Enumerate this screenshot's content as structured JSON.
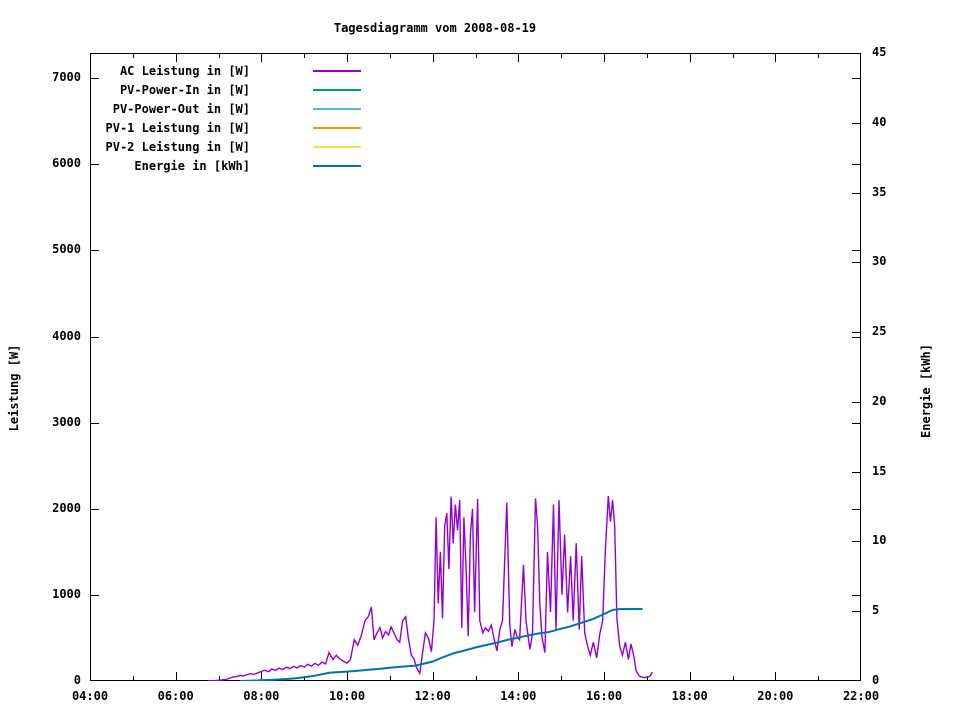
{
  "title": "Tagesdiagramm vom 2008-08-19",
  "axis_titles": {
    "left": "Leistung [W]",
    "right": "Energie [kWh]"
  },
  "legend": [
    {
      "label": "AC Leistung in [W]",
      "color": "#9400d3"
    },
    {
      "label": "PV-Power-In in [W]",
      "color": "#009e73"
    },
    {
      "label": "PV-Power-Out in [W]",
      "color": "#56b4e9"
    },
    {
      "label": "PV-1 Leistung in [W]",
      "color": "#e69f00"
    },
    {
      "label": "PV-2 Leistung in [W]",
      "color": "#f0e442"
    },
    {
      "label": "Energie in [kWh]",
      "color": "#0072b2"
    }
  ],
  "chart_data": {
    "type": "line",
    "title": "Tagesdiagramm vom 2008-08-19",
    "ylabel_left": "Leistung [W]",
    "ylabel_right": "Energie [kWh]",
    "grid": false,
    "legend_position": "top-left-inside",
    "x_axis": {
      "unit": "time of day",
      "min_hour": 4,
      "max_hour": 22,
      "major_ticks": [
        {
          "t": 4,
          "label": "04:00"
        },
        {
          "t": 6,
          "label": "06:00"
        },
        {
          "t": 8,
          "label": "08:00"
        },
        {
          "t": 10,
          "label": "10:00"
        },
        {
          "t": 12,
          "label": "12:00"
        },
        {
          "t": 14,
          "label": "14:00"
        },
        {
          "t": 16,
          "label": "16:00"
        },
        {
          "t": 18,
          "label": "18:00"
        },
        {
          "t": 20,
          "label": "20:00"
        },
        {
          "t": 22,
          "label": "22:00"
        }
      ],
      "minor_ticks": [
        5,
        7,
        9,
        11,
        13,
        15,
        17,
        19,
        21
      ]
    },
    "y_left_axis": {
      "label": "Leistung [W]",
      "min": 0,
      "plot_top_value": 7293,
      "ticks": [
        0,
        1000,
        2000,
        3000,
        4000,
        5000,
        6000,
        7000
      ]
    },
    "y_right_axis": {
      "label": "Energie [kWh]",
      "min": 0,
      "max": 45,
      "ticks": [
        0,
        5,
        10,
        15,
        20,
        25,
        30,
        35,
        40,
        45
      ]
    },
    "series": [
      {
        "name": "AC Leistung in [W]",
        "color": "#9400d3",
        "axis": "left",
        "visible": true,
        "points": [
          [
            6.75,
            0
          ],
          [
            6.83,
            3
          ],
          [
            6.92,
            5
          ],
          [
            7.0,
            8
          ],
          [
            7.08,
            12
          ],
          [
            7.17,
            18
          ],
          [
            7.25,
            30
          ],
          [
            7.33,
            45
          ],
          [
            7.42,
            50
          ],
          [
            7.5,
            65
          ],
          [
            7.58,
            58
          ],
          [
            7.67,
            75
          ],
          [
            7.75,
            85
          ],
          [
            7.83,
            78
          ],
          [
            7.92,
            95
          ],
          [
            8.0,
            112
          ],
          [
            8.08,
            125
          ],
          [
            8.17,
            108
          ],
          [
            8.25,
            140
          ],
          [
            8.33,
            122
          ],
          [
            8.42,
            150
          ],
          [
            8.5,
            132
          ],
          [
            8.58,
            160
          ],
          [
            8.67,
            143
          ],
          [
            8.75,
            170
          ],
          [
            8.83,
            152
          ],
          [
            8.92,
            180
          ],
          [
            9.0,
            162
          ],
          [
            9.08,
            195
          ],
          [
            9.17,
            172
          ],
          [
            9.25,
            205
          ],
          [
            9.33,
            182
          ],
          [
            9.42,
            220
          ],
          [
            9.5,
            198
          ],
          [
            9.58,
            330
          ],
          [
            9.67,
            248
          ],
          [
            9.75,
            300
          ],
          [
            9.83,
            258
          ],
          [
            9.92,
            228
          ],
          [
            10.0,
            208
          ],
          [
            10.08,
            250
          ],
          [
            10.17,
            480
          ],
          [
            10.25,
            415
          ],
          [
            10.33,
            520
          ],
          [
            10.42,
            700
          ],
          [
            10.5,
            750
          ],
          [
            10.57,
            860
          ],
          [
            10.63,
            480
          ],
          [
            10.7,
            560
          ],
          [
            10.77,
            620
          ],
          [
            10.83,
            500
          ],
          [
            10.9,
            575
          ],
          [
            10.97,
            535
          ],
          [
            11.03,
            628
          ],
          [
            11.1,
            555
          ],
          [
            11.17,
            478
          ],
          [
            11.23,
            450
          ],
          [
            11.3,
            700
          ],
          [
            11.37,
            745
          ],
          [
            11.43,
            500
          ],
          [
            11.5,
            302
          ],
          [
            11.57,
            248
          ],
          [
            11.63,
            150
          ],
          [
            11.7,
            90
          ],
          [
            11.77,
            348
          ],
          [
            11.83,
            558
          ],
          [
            11.9,
            498
          ],
          [
            11.97,
            340
          ],
          [
            12.03,
            698
          ],
          [
            12.08,
            1900
          ],
          [
            12.13,
            900
          ],
          [
            12.18,
            1500
          ],
          [
            12.23,
            728
          ],
          [
            12.28,
            1800
          ],
          [
            12.33,
            1950
          ],
          [
            12.38,
            1300
          ],
          [
            12.43,
            2140
          ],
          [
            12.48,
            1600
          ],
          [
            12.53,
            2050
          ],
          [
            12.58,
            1750
          ],
          [
            12.63,
            2100
          ],
          [
            12.68,
            618
          ],
          [
            12.73,
            1900
          ],
          [
            12.78,
            1300
          ],
          [
            12.83,
            520
          ],
          [
            12.88,
            1700
          ],
          [
            12.93,
            2000
          ],
          [
            12.98,
            800
          ],
          [
            13.05,
            2115
          ],
          [
            13.1,
            700
          ],
          [
            13.17,
            560
          ],
          [
            13.23,
            618
          ],
          [
            13.3,
            578
          ],
          [
            13.37,
            648
          ],
          [
            13.43,
            500
          ],
          [
            13.5,
            350
          ],
          [
            13.57,
            600
          ],
          [
            13.63,
            700
          ],
          [
            13.73,
            2070
          ],
          [
            13.8,
            648
          ],
          [
            13.85,
            400
          ],
          [
            13.92,
            598
          ],
          [
            13.97,
            518
          ],
          [
            14.03,
            478
          ],
          [
            14.12,
            1350
          ],
          [
            14.18,
            698
          ],
          [
            14.27,
            368
          ],
          [
            14.33,
            548
          ],
          [
            14.4,
            2120
          ],
          [
            14.45,
            1800
          ],
          [
            14.5,
            900
          ],
          [
            14.55,
            518
          ],
          [
            14.62,
            330
          ],
          [
            14.68,
            1500
          ],
          [
            14.75,
            800
          ],
          [
            14.82,
            2050
          ],
          [
            14.88,
            598
          ],
          [
            14.95,
            2100
          ],
          [
            15.02,
            1000
          ],
          [
            15.08,
            1700
          ],
          [
            15.15,
            798
          ],
          [
            15.22,
            1450
          ],
          [
            15.28,
            700
          ],
          [
            15.35,
            1600
          ],
          [
            15.42,
            598
          ],
          [
            15.48,
            1450
          ],
          [
            15.55,
            558
          ],
          [
            15.62,
            400
          ],
          [
            15.68,
            300
          ],
          [
            15.75,
            450
          ],
          [
            15.83,
            268
          ],
          [
            15.9,
            540
          ],
          [
            15.97,
            700
          ],
          [
            16.03,
            1500
          ],
          [
            16.1,
            2150
          ],
          [
            16.15,
            1850
          ],
          [
            16.2,
            2100
          ],
          [
            16.25,
            1800
          ],
          [
            16.3,
            725
          ],
          [
            16.37,
            400
          ],
          [
            16.43,
            300
          ],
          [
            16.5,
            450
          ],
          [
            16.57,
            250
          ],
          [
            16.63,
            430
          ],
          [
            16.7,
            280
          ],
          [
            16.75,
            120
          ],
          [
            16.82,
            60
          ],
          [
            16.88,
            45
          ],
          [
            16.95,
            40
          ],
          [
            17.02,
            45
          ],
          [
            17.08,
            60
          ],
          [
            17.13,
            105
          ]
        ]
      },
      {
        "name": "PV-Power-In in [W]",
        "color": "#009e73",
        "axis": "left",
        "visible": false,
        "points": []
      },
      {
        "name": "PV-Power-Out in [W]",
        "color": "#56b4e9",
        "axis": "left",
        "visible": false,
        "points": []
      },
      {
        "name": "PV-1 Leistung in [W]",
        "color": "#e69f00",
        "axis": "left",
        "visible": false,
        "points": []
      },
      {
        "name": "PV-2 Leistung in [W]",
        "color": "#f0e442",
        "axis": "left",
        "visible": false,
        "points": []
      },
      {
        "name": "Energie in [kWh]",
        "color": "#0072b2",
        "axis": "right",
        "visible": true,
        "points": [
          [
            7.5,
            0.0
          ],
          [
            7.75,
            0.02
          ],
          [
            8.0,
            0.05
          ],
          [
            8.25,
            0.08
          ],
          [
            8.5,
            0.12
          ],
          [
            8.75,
            0.18
          ],
          [
            9.0,
            0.27
          ],
          [
            9.25,
            0.38
          ],
          [
            9.6,
            0.6
          ],
          [
            10.0,
            0.67
          ],
          [
            10.25,
            0.74
          ],
          [
            10.5,
            0.8
          ],
          [
            10.75,
            0.87
          ],
          [
            11.0,
            0.95
          ],
          [
            11.25,
            1.02
          ],
          [
            11.6,
            1.1
          ],
          [
            11.8,
            1.25
          ],
          [
            12.0,
            1.4
          ],
          [
            12.25,
            1.72
          ],
          [
            12.5,
            2.0
          ],
          [
            12.7,
            2.15
          ],
          [
            13.0,
            2.4
          ],
          [
            13.25,
            2.58
          ],
          [
            13.5,
            2.75
          ],
          [
            13.75,
            2.95
          ],
          [
            14.0,
            3.1
          ],
          [
            14.25,
            3.28
          ],
          [
            14.5,
            3.42
          ],
          [
            14.7,
            3.5
          ],
          [
            15.0,
            3.75
          ],
          [
            15.2,
            3.9
          ],
          [
            15.5,
            4.2
          ],
          [
            15.75,
            4.45
          ],
          [
            16.0,
            4.8
          ],
          [
            16.2,
            5.09
          ],
          [
            16.35,
            5.15
          ],
          [
            16.9,
            5.16
          ]
        ]
      }
    ]
  }
}
